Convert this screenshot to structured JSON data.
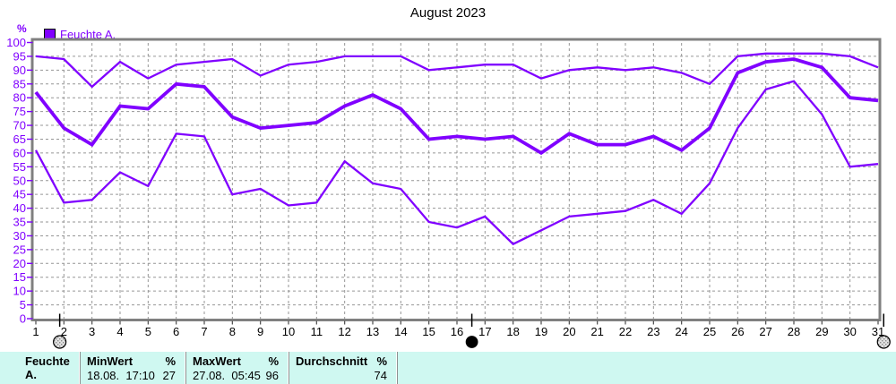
{
  "title": "August 2023",
  "legend": {
    "label": "Feuchte A."
  },
  "y_axis": {
    "unit": "%",
    "min": 0,
    "max": 100,
    "step": 5,
    "ticks": [
      0,
      5,
      10,
      15,
      20,
      25,
      30,
      35,
      40,
      45,
      50,
      55,
      60,
      65,
      70,
      75,
      80,
      85,
      90,
      95,
      100
    ]
  },
  "chart_data": {
    "type": "line",
    "title": "August 2023",
    "xlabel": "",
    "ylabel": "%",
    "ylim": [
      0,
      100
    ],
    "grid": true,
    "legend_position": "top-left",
    "legend_entries": [
      "Feuchte A."
    ],
    "x": [
      1,
      2,
      3,
      4,
      5,
      6,
      7,
      8,
      9,
      10,
      11,
      12,
      13,
      14,
      15,
      16,
      17,
      18,
      19,
      20,
      21,
      22,
      23,
      24,
      25,
      26,
      27,
      28,
      29,
      30,
      31
    ],
    "series": [
      {
        "name": "Max",
        "values": [
          95,
          94,
          84,
          93,
          87,
          92,
          93,
          94,
          88,
          92,
          93,
          95,
          95,
          95,
          90,
          91,
          92,
          92,
          87,
          90,
          91,
          90,
          91,
          89,
          85,
          95,
          96,
          96,
          96,
          95,
          91
        ]
      },
      {
        "name": "Durchschnitt",
        "values": [
          82,
          69,
          63,
          77,
          76,
          85,
          84,
          73,
          69,
          70,
          71,
          77,
          81,
          76,
          65,
          66,
          65,
          66,
          60,
          67,
          63,
          63,
          66,
          61,
          69,
          89,
          93,
          94,
          91,
          80,
          79
        ]
      },
      {
        "name": "Min",
        "values": [
          61,
          42,
          43,
          53,
          48,
          67,
          66,
          45,
          47,
          41,
          42,
          57,
          49,
          47,
          35,
          33,
          37,
          27,
          32,
          37,
          38,
          39,
          43,
          38,
          49,
          69,
          83,
          86,
          74,
          55,
          56
        ]
      }
    ],
    "line_color": "#8000FF"
  },
  "markers": [
    {
      "day": 1.85,
      "style": "hatched"
    },
    {
      "day": 16.53,
      "style": "filled"
    },
    {
      "day": 31.2,
      "style": "hatched"
    }
  ],
  "stats_table": {
    "row_label": "Feuchte A.",
    "columns": [
      {
        "title": "MinWert",
        "unit": "%",
        "datetime": "18.08.  17:10",
        "value": "27"
      },
      {
        "title": "MaxWert",
        "unit": "%",
        "datetime": "27.08.  05:45",
        "value": "96"
      },
      {
        "title": "Durchschnitt",
        "unit": "%",
        "datetime": "",
        "value": "74"
      }
    ]
  },
  "colors": {
    "line": "#8000FF",
    "axis_text": "#8000FF",
    "grid": "#969696",
    "border": "#808080",
    "table_bg": "#CFF8F1",
    "text": "#000000"
  }
}
